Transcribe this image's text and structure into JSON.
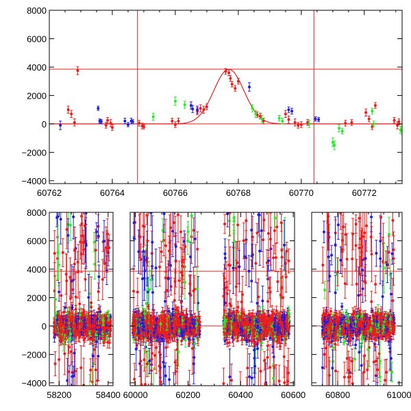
{
  "chart_data": [
    {
      "type": "scatter",
      "panel": "zoom",
      "title": "",
      "xlabel": "",
      "ylabel": "",
      "xlim": [
        60762,
        60773.2
      ],
      "ylim": [
        -4200,
        8000
      ],
      "x_ticks": [
        60762,
        60764,
        60766,
        60768,
        60770,
        60772
      ],
      "y_ticks": [
        -4000,
        -2000,
        0,
        2000,
        4000,
        6000,
        8000
      ],
      "tick_labels_x": [
        "60762",
        "60764",
        "60766",
        "60768",
        "60770",
        "60772"
      ],
      "tick_labels_y": [
        "−4000",
        "−2000",
        "0",
        "2000",
        "4000",
        "6000",
        "8000"
      ],
      "hlines": [
        0,
        3850
      ],
      "vlines": [
        60764.8,
        60770.4
      ],
      "colors": {
        "red": "#ee1c1c",
        "blue": "#1f1fe0",
        "green": "#22ee22",
        "line": "#e02020"
      },
      "model": {
        "type": "gaussian_peak",
        "center": 60767.7,
        "amplitude": 3850,
        "sigma": 0.48
      },
      "series": [
        {
          "color": "red",
          "points": [
            [
              60762.6,
              1000,
              250
            ],
            [
              60762.7,
              700,
              250
            ],
            [
              60762.8,
              100,
              250
            ],
            [
              60762.9,
              3750,
              280
            ],
            [
              60763.8,
              -100,
              200
            ],
            [
              60763.85,
              250,
              200
            ],
            [
              60763.95,
              50,
              250
            ],
            [
              60764.0,
              -250,
              200
            ],
            [
              60764.85,
              50,
              200
            ],
            [
              60764.95,
              -150,
              200
            ],
            [
              60765.0,
              -200,
              150
            ],
            [
              60765.9,
              200,
              200
            ],
            [
              60766.0,
              -50,
              200
            ],
            [
              60766.1,
              200,
              200
            ],
            [
              60766.7,
              900,
              250
            ],
            [
              60766.8,
              1100,
              250
            ],
            [
              60766.9,
              1000,
              250
            ],
            [
              60767.0,
              1200,
              200
            ],
            [
              60767.6,
              3700,
              200
            ],
            [
              60767.7,
              3600,
              200
            ],
            [
              60767.75,
              3200,
              200
            ],
            [
              60767.8,
              2800,
              200
            ],
            [
              60767.9,
              2500,
              200
            ],
            [
              60768.0,
              3000,
              200
            ],
            [
              60768.6,
              650,
              200
            ],
            [
              60768.7,
              550,
              200
            ],
            [
              60768.8,
              200,
              200
            ],
            [
              60769.5,
              700,
              250
            ],
            [
              60769.6,
              300,
              250
            ],
            [
              60769.8,
              100,
              250
            ],
            [
              60769.9,
              -100,
              200
            ],
            [
              60770.0,
              -50,
              200
            ],
            [
              60770.2,
              100,
              200
            ],
            [
              60771.4,
              50,
              200
            ],
            [
              60771.6,
              100,
              200
            ],
            [
              60772.05,
              800,
              250
            ],
            [
              60772.15,
              350,
              200
            ],
            [
              60772.25,
              -200,
              200
            ],
            [
              60772.35,
              1300,
              200
            ],
            [
              60772.95,
              250,
              200
            ],
            [
              60773.05,
              -100,
              250
            ],
            [
              60773.1,
              150,
              200
            ]
          ]
        },
        {
          "color": "blue",
          "points": [
            [
              60762.35,
              -100,
              300
            ],
            [
              60763.55,
              1100,
              150
            ],
            [
              60763.6,
              200,
              150
            ],
            [
              60763.65,
              150,
              150
            ],
            [
              60764.4,
              200,
              200
            ],
            [
              60764.5,
              -50,
              150
            ],
            [
              60764.6,
              200,
              200
            ],
            [
              60764.65,
              150,
              150
            ],
            [
              60766.5,
              1300,
              250
            ],
            [
              60766.55,
              1050,
              250
            ],
            [
              60766.7,
              1000,
              250
            ],
            [
              60768.35,
              2600,
              300
            ],
            [
              60769.6,
              1000,
              200
            ],
            [
              60769.7,
              900,
              200
            ],
            [
              60770.45,
              350,
              150
            ],
            [
              60770.55,
              300,
              150
            ]
          ]
        },
        {
          "color": "green",
          "points": [
            [
              60765.3,
              500,
              250
            ],
            [
              60766.0,
              1600,
              300
            ],
            [
              60766.3,
              1350,
              250
            ],
            [
              60768.45,
              1100,
              250
            ],
            [
              60768.55,
              700,
              250
            ],
            [
              60768.75,
              350,
              250
            ],
            [
              60769.3,
              400,
              200
            ],
            [
              60769.4,
              200,
              200
            ],
            [
              60770.25,
              0,
              250
            ],
            [
              60771.0,
              -1300,
              300
            ],
            [
              60771.05,
              -1500,
              300
            ],
            [
              60771.2,
              -300,
              250
            ],
            [
              60771.3,
              -500,
              200
            ],
            [
              60772.25,
              900,
              200
            ],
            [
              60772.3,
              0,
              200
            ],
            [
              60773.15,
              -400,
              250
            ],
            [
              60773.2,
              -500,
              250
            ]
          ]
        }
      ]
    },
    {
      "type": "scatter",
      "panel": "full",
      "title": "",
      "xlabel": "",
      "ylabel": "",
      "x_ticks": [
        58200,
        58400,
        60000,
        60200,
        60400,
        60600,
        60800,
        61000
      ],
      "y_ticks": [
        -4000,
        -2000,
        0,
        2000,
        4000,
        6000,
        8000
      ],
      "tick_labels_x": [
        "58200",
        "58400",
        "60000",
        "60200",
        "60400",
        "60600",
        "60800",
        "61000"
      ],
      "tick_labels_y": [
        "−4000",
        "−2000",
        "0",
        "2000",
        "4000",
        "6000",
        "8000"
      ],
      "hlines": [
        0,
        3850
      ],
      "vlines": [
        60764.8,
        60770.4
      ],
      "colors": {
        "red": "#ee1c1c",
        "blue": "#1f1fe0",
        "green": "#22ee22",
        "line": "#e02020"
      },
      "segments": [
        {
          "xlim": [
            58160,
            58420
          ],
          "x_ticks": [
            58200,
            58400
          ],
          "tick_labels": [
            "58200",
            "58400"
          ],
          "seasons": [
            [
              58180,
              58410
            ]
          ]
        },
        {
          "xlim": [
            59980,
            60605
          ],
          "x_ticks": [
            60000,
            60200,
            60400,
            60600
          ],
          "tick_labels": [
            "60000",
            "60200",
            "60400",
            "60600"
          ],
          "seasons": [
            [
              59990,
              60245
            ],
            [
              60335,
              60585
            ]
          ]
        },
        {
          "xlim": [
            60715,
            61010
          ],
          "x_ticks": [
            60800,
            61000
          ],
          "tick_labels": [
            "60800",
            "61000"
          ],
          "seasons": [
            [
              60750,
              60985
            ]
          ]
        }
      ],
      "ylim": [
        -4200,
        8000
      ]
    }
  ]
}
